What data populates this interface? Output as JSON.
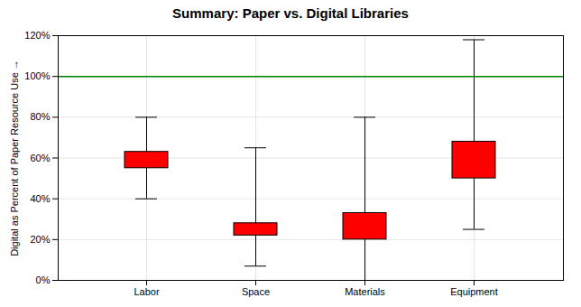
{
  "chart_data": {
    "type": "box",
    "title": "Summary:  Paper vs. Digital Libraries",
    "ylabel": "Digital as Percent of Paper Resource Use",
    "categories": [
      "Labor",
      "Space",
      "Materials",
      "Equipment"
    ],
    "boxes": [
      {
        "q1": 55,
        "q3": 63,
        "whisker_low": 40,
        "whisker_high": 80
      },
      {
        "q1": 22,
        "q3": 28,
        "whisker_low": 7,
        "whisker_high": 65
      },
      {
        "q1": 20,
        "q3": 33,
        "whisker_low": 0,
        "whisker_high": 80
      },
      {
        "q1": 50,
        "q3": 68,
        "whisker_low": 25,
        "whisker_high": 118
      }
    ],
    "color": "#FF0000",
    "hline": {
      "value": 100,
      "color": "#008000"
    },
    "ylim": [
      0,
      120
    ],
    "yticks": [
      {
        "value": 0,
        "label": "0%"
      },
      {
        "value": 20,
        "label": "20%"
      },
      {
        "value": 40,
        "label": "40%"
      },
      {
        "value": 60,
        "label": "60%"
      },
      {
        "value": 80,
        "label": "80%"
      },
      {
        "value": 100,
        "label": "100%"
      },
      {
        "value": 120,
        "label": "120%"
      }
    ],
    "grid": true
  }
}
